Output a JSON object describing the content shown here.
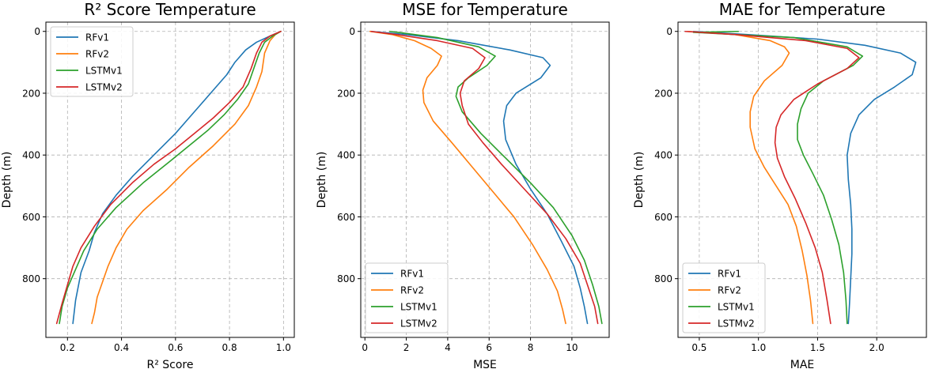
{
  "colors": {
    "RFv1": "#1f77b4",
    "RFv2": "#ff7f0e",
    "LSTMv1": "#2ca02c",
    "LSTMv2": "#d62728"
  },
  "chart_data": [
    {
      "type": "line",
      "title": "R² Score Temperature",
      "xlabel": "R² Score",
      "ylabel": "Depth (m)",
      "xlim": [
        0.12,
        1.04
      ],
      "ylim": [
        990,
        -30
      ],
      "xticks": [
        0.2,
        0.4,
        0.6,
        0.8,
        1.0
      ],
      "xticklabels": [
        "0.2",
        "0.4",
        "0.6",
        "0.8",
        "1.0"
      ],
      "yticks": [
        0,
        200,
        400,
        600,
        800
      ],
      "yticklabels": [
        "0",
        "200",
        "400",
        "600",
        "800"
      ],
      "legend": "top-left",
      "series": [
        {
          "name": "RFv1",
          "x": [
            0.99,
            0.95,
            0.9,
            0.86,
            0.82,
            0.79,
            0.75,
            0.7,
            0.65,
            0.6,
            0.52,
            0.44,
            0.38,
            0.33,
            0.3,
            0.28,
            0.25,
            0.23,
            0.22
          ],
          "y": [
            0,
            15,
            35,
            60,
            100,
            140,
            180,
            230,
            280,
            330,
            400,
            470,
            530,
            590,
            650,
            710,
            780,
            870,
            945
          ]
        },
        {
          "name": "RFv2",
          "x": [
            0.99,
            0.97,
            0.95,
            0.93,
            0.92,
            0.9,
            0.87,
            0.82,
            0.74,
            0.65,
            0.57,
            0.48,
            0.42,
            0.38,
            0.35,
            0.33,
            0.31,
            0.3,
            0.29
          ],
          "y": [
            0,
            10,
            30,
            70,
            130,
            180,
            240,
            300,
            370,
            440,
            510,
            580,
            640,
            700,
            760,
            810,
            860,
            910,
            945
          ]
        },
        {
          "name": "LSTMv1",
          "x": [
            0.99,
            0.96,
            0.93,
            0.91,
            0.89,
            0.87,
            0.83,
            0.78,
            0.72,
            0.65,
            0.58,
            0.48,
            0.38,
            0.31,
            0.26,
            0.23,
            0.2,
            0.18,
            0.17
          ],
          "y": [
            0,
            15,
            35,
            70,
            120,
            170,
            220,
            270,
            320,
            370,
            420,
            490,
            570,
            640,
            710,
            770,
            830,
            890,
            945
          ]
        },
        {
          "name": "LSTMv2",
          "x": [
            0.99,
            0.95,
            0.92,
            0.9,
            0.88,
            0.85,
            0.8,
            0.74,
            0.67,
            0.6,
            0.52,
            0.44,
            0.36,
            0.3,
            0.25,
            0.22,
            0.2,
            0.18,
            0.16
          ],
          "y": [
            0,
            15,
            35,
            70,
            120,
            180,
            230,
            280,
            330,
            380,
            430,
            490,
            560,
            630,
            700,
            760,
            820,
            880,
            945
          ]
        }
      ]
    },
    {
      "type": "line",
      "title": "MSE for Temperature",
      "xlabel": "MSE",
      "ylabel": "Depth (m)",
      "xlim": [
        -0.2,
        11.8
      ],
      "ylim": [
        990,
        -30
      ],
      "xticks": [
        0,
        2,
        4,
        6,
        8,
        10
      ],
      "xticklabels": [
        "0",
        "2",
        "4",
        "6",
        "8",
        "10"
      ],
      "yticks": [
        0,
        200,
        400,
        600,
        800
      ],
      "yticklabels": [
        "0",
        "200",
        "400",
        "600",
        "800"
      ],
      "legend": "bottom-left",
      "series": [
        {
          "name": "RFv1",
          "x": [
            0.3,
            2.0,
            4.5,
            7.0,
            8.6,
            8.95,
            8.5,
            7.3,
            6.85,
            6.7,
            6.8,
            7.3,
            8.0,
            8.8,
            9.5,
            10.1,
            10.4,
            10.6,
            10.75
          ],
          "y": [
            0,
            10,
            30,
            60,
            85,
            110,
            150,
            200,
            240,
            290,
            350,
            430,
            510,
            590,
            680,
            760,
            830,
            890,
            945
          ]
        },
        {
          "name": "RFv2",
          "x": [
            0.25,
            1.3,
            2.4,
            3.2,
            3.7,
            3.5,
            3.0,
            2.8,
            2.85,
            3.3,
            4.2,
            5.2,
            6.2,
            7.2,
            8.1,
            8.8,
            9.3,
            9.55,
            9.7
          ],
          "y": [
            0,
            10,
            30,
            55,
            80,
            110,
            150,
            190,
            230,
            290,
            360,
            440,
            520,
            600,
            690,
            770,
            840,
            900,
            945
          ]
        },
        {
          "name": "LSTMv1",
          "x": [
            1.2,
            1.6,
            3.5,
            5.5,
            6.3,
            5.9,
            5.0,
            4.5,
            4.4,
            4.7,
            5.6,
            6.8,
            8.0,
            9.1,
            10.0,
            10.6,
            11.0,
            11.3,
            11.45
          ],
          "y": [
            0,
            3,
            20,
            50,
            80,
            110,
            150,
            180,
            210,
            260,
            330,
            410,
            490,
            570,
            660,
            740,
            820,
            890,
            945
          ]
        },
        {
          "name": "LSTMv2",
          "x": [
            0.3,
            1.5,
            3.5,
            5.2,
            5.8,
            5.5,
            4.8,
            4.6,
            4.7,
            5.0,
            5.7,
            6.6,
            7.7,
            8.8,
            9.7,
            10.4,
            10.8,
            11.1,
            11.25
          ],
          "y": [
            0,
            10,
            30,
            55,
            85,
            120,
            160,
            200,
            240,
            300,
            360,
            430,
            510,
            590,
            670,
            750,
            830,
            890,
            945
          ]
        }
      ]
    },
    {
      "type": "line",
      "title": "MAE for Temperature",
      "xlabel": "MAE",
      "ylabel": "Depth (m)",
      "xlim": [
        0.32,
        2.42
      ],
      "ylim": [
        990,
        -30
      ],
      "xticks": [
        0.5,
        1.0,
        1.5,
        2.0
      ],
      "xticklabels": [
        "0.5",
        "1.0",
        "1.5",
        "2.0"
      ],
      "yticks": [
        0,
        200,
        400,
        600,
        800
      ],
      "yticklabels": [
        "0",
        "200",
        "400",
        "600",
        "800"
      ],
      "legend": "bottom-left",
      "series": [
        {
          "name": "RFv1",
          "x": [
            0.45,
            0.9,
            1.5,
            1.9,
            2.2,
            2.33,
            2.3,
            2.15,
            1.98,
            1.85,
            1.78,
            1.75,
            1.76,
            1.78,
            1.79,
            1.79,
            1.78,
            1.77,
            1.76
          ],
          "y": [
            0,
            10,
            25,
            45,
            70,
            100,
            140,
            180,
            220,
            270,
            330,
            400,
            480,
            560,
            640,
            720,
            800,
            880,
            945
          ]
        },
        {
          "name": "RFv2",
          "x": [
            0.4,
            0.8,
            1.1,
            1.22,
            1.26,
            1.2,
            1.05,
            0.96,
            0.93,
            0.93,
            0.97,
            1.05,
            1.15,
            1.25,
            1.32,
            1.37,
            1.41,
            1.44,
            1.46
          ],
          "y": [
            0,
            10,
            30,
            50,
            70,
            110,
            160,
            210,
            260,
            310,
            380,
            440,
            500,
            560,
            630,
            710,
            790,
            870,
            945
          ]
        },
        {
          "name": "LSTMv1",
          "x": [
            0.83,
            0.45,
            1.3,
            1.75,
            1.88,
            1.8,
            1.55,
            1.42,
            1.36,
            1.33,
            1.33,
            1.38,
            1.46,
            1.55,
            1.62,
            1.68,
            1.72,
            1.74,
            1.75
          ],
          "y": [
            0,
            3,
            20,
            50,
            80,
            110,
            160,
            200,
            250,
            300,
            350,
            400,
            460,
            530,
            610,
            690,
            780,
            870,
            945
          ]
        },
        {
          "name": "LSTMv2",
          "x": [
            0.38,
            0.8,
            1.4,
            1.75,
            1.85,
            1.75,
            1.5,
            1.3,
            1.19,
            1.15,
            1.14,
            1.16,
            1.22,
            1.31,
            1.4,
            1.48,
            1.54,
            1.58,
            1.61
          ],
          "y": [
            0,
            10,
            30,
            55,
            85,
            120,
            170,
            220,
            270,
            310,
            360,
            410,
            470,
            540,
            620,
            700,
            780,
            870,
            945
          ]
        }
      ]
    }
  ]
}
